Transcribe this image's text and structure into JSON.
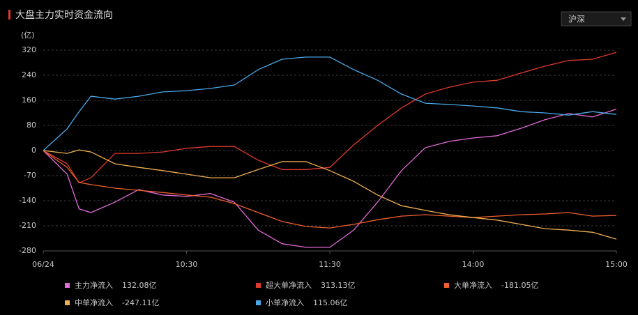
{
  "chart_data": {
    "type": "line",
    "title": "大盘主力实时资金流向",
    "y_label": "(亿)",
    "market_select": "沪深",
    "xlim": [
      0,
      240
    ],
    "ylim": [
      -280,
      320
    ],
    "xticks": [
      {
        "value": 0,
        "label": "06/24"
      },
      {
        "value": 60,
        "label": "10:30"
      },
      {
        "value": 120,
        "label": "11:30"
      },
      {
        "value": 180,
        "label": "14:00"
      },
      {
        "value": 240,
        "label": "15:00"
      }
    ],
    "yticks": [
      320,
      240,
      160,
      80,
      0,
      -70,
      -140,
      -210,
      -280
    ],
    "grid": true,
    "x": [
      0,
      10,
      15,
      20,
      30,
      40,
      50,
      60,
      70,
      80,
      90,
      100,
      110,
      120,
      130,
      140,
      150,
      160,
      170,
      180,
      190,
      200,
      210,
      220,
      230,
      240
    ],
    "series": [
      {
        "name": "主力净流入",
        "color": "#e06ad8",
        "legend_value": "132.08亿",
        "legend_value_color": "#ff4d4d",
        "values": [
          0,
          -66,
          -163,
          -173,
          -144,
          -109,
          -124,
          -128,
          -120,
          -144,
          -222,
          -260,
          -270,
          -270,
          -222,
          -144,
          -56,
          9,
          29,
          40,
          47,
          71,
          98,
          118,
          107,
          132.08
        ]
      },
      {
        "name": "超大单净流入",
        "color": "#e0392d",
        "legend_value": "313.13亿",
        "legend_value_color": "#ff4d4d",
        "values": [
          0,
          -37,
          -90,
          -76,
          -8,
          -8,
          -4,
          7,
          13,
          13,
          -27,
          -53,
          -53,
          -47,
          18,
          80,
          136,
          180,
          202,
          218,
          224,
          247,
          269,
          287,
          291,
          313.13
        ]
      },
      {
        "name": "大单净流入",
        "color": "#f0602e",
        "legend_value": "-181.05亿",
        "legend_value_color": "#3ccf3c",
        "values": [
          0,
          -47,
          -89,
          -95,
          -105,
          -111,
          -117,
          -124,
          -130,
          -148,
          -173,
          -198,
          -212,
          -216,
          -206,
          -193,
          -183,
          -179,
          -183,
          -187,
          -183,
          -179,
          -177,
          -173,
          -183,
          -181.05
        ]
      },
      {
        "name": "中单净流入",
        "color": "#f0b050",
        "legend_value": "-247.11亿",
        "legend_value_color": "#3ccf3c",
        "values": [
          0,
          -8,
          2,
          -4,
          -37,
          -47,
          -56,
          -66,
          -76,
          -76,
          -53,
          -31,
          -31,
          -56,
          -86,
          -124,
          -154,
          -167,
          -179,
          -187,
          -194,
          -206,
          -218,
          -222,
          -228,
          -247.11
        ]
      },
      {
        "name": "小单净流入",
        "color": "#4aa8e8",
        "legend_value": "115.06亿",
        "legend_value_color": "#ff4d4d",
        "values": [
          0,
          69,
          124,
          173,
          164,
          173,
          187,
          191,
          198,
          209,
          258,
          291,
          298,
          298,
          258,
          224,
          180,
          151,
          147,
          142,
          136,
          124,
          120,
          113,
          124,
          115.06
        ]
      }
    ]
  }
}
